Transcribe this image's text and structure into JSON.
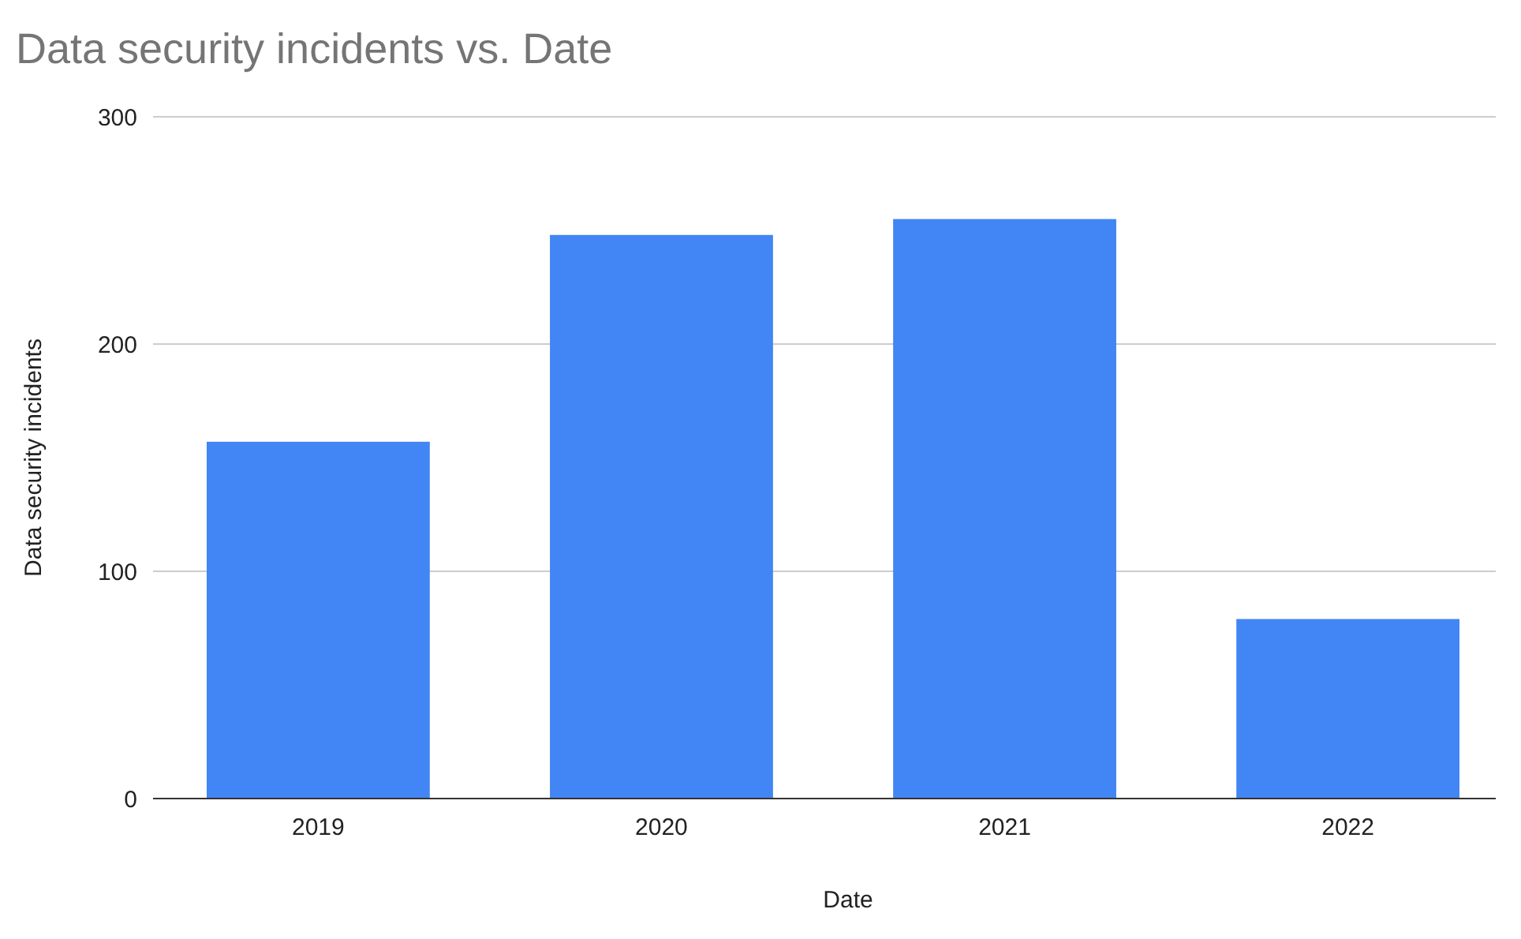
{
  "chart_data": {
    "type": "bar",
    "title": "Data security incidents vs. Date",
    "xlabel": "Date",
    "ylabel": "Data security incidents",
    "categories": [
      "2019",
      "2020",
      "2021",
      "2022"
    ],
    "values": [
      157,
      248,
      255,
      79
    ],
    "color": "#4285f4",
    "ylim": [
      0,
      300
    ],
    "yticks": [
      0,
      100,
      200,
      300
    ],
    "grid": "y"
  }
}
